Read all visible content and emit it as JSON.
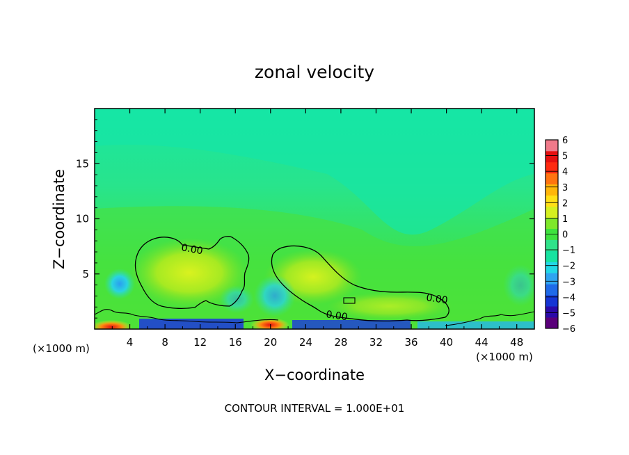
{
  "chart_data": {
    "type": "heatmap",
    "title": "zonal velocity",
    "xlabel": "X−coordinate",
    "ylabel": "Z−coordinate",
    "x_unit_left": "(×1000 m)",
    "x_unit_right": "(×1000 m)",
    "xlim": [
      0,
      50
    ],
    "ylim": [
      0,
      20
    ],
    "x_ticks": [
      4,
      8,
      12,
      16,
      20,
      24,
      28,
      32,
      36,
      40,
      44,
      48
    ],
    "y_ticks": [
      5,
      10,
      15
    ],
    "contour_interval_text": "CONTOUR INTERVAL = 1.000E+01",
    "contour_labels": [
      "0.00",
      "0.00",
      "0.00"
    ],
    "colorbar": {
      "min": -6,
      "max": 6,
      "tick_labels": [
        "6",
        "5",
        "4",
        "3",
        "2",
        "1",
        "0",
        "−1",
        "−2",
        "−3",
        "−4",
        "−5",
        "−6"
      ],
      "colors": [
        "#5a007a",
        "#2a0aa8",
        "#1535d4",
        "#1f6ae8",
        "#2fa4f0",
        "#22d8e6",
        "#17e3a0",
        "#2fe38a",
        "#3ee23e",
        "#7fe82a",
        "#d6f020",
        "#ffe016",
        "#ffb60a",
        "#ff7410",
        "#ff2a10",
        "#e61010",
        "#f07a8a"
      ]
    },
    "positive_regions": [
      {
        "x_range": [
          5,
          17
        ],
        "z_range": [
          2.5,
          8.5
        ]
      },
      {
        "x_range": [
          20,
          40
        ],
        "z_range": [
          0.5,
          7.5
        ]
      }
    ]
  }
}
